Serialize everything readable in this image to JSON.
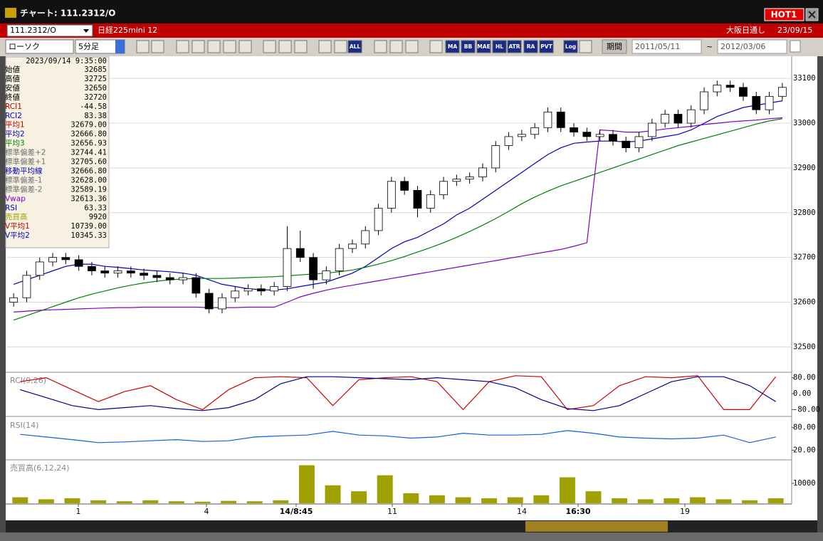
{
  "window": {
    "title": "チャート: 111.2312/O",
    "hot": "HOT1"
  },
  "header": {
    "symbol": "111.2312/O",
    "name": "日経225mini 12",
    "market": "大阪日通し",
    "date": "23/09/15"
  },
  "toolbar": {
    "chart_type": "ローソク",
    "interval": "5分足",
    "buttons": [
      "ALL",
      "MA",
      "BB",
      "MAE",
      "HL",
      "ATR",
      "RA",
      "PVT",
      "Log"
    ],
    "period": "期間",
    "from": "2011/05/11",
    "separator": "~",
    "to": "2012/03/06"
  },
  "info": {
    "datetime": "2023/09/14 9:35:00",
    "rows": [
      {
        "label": "始値",
        "value": "32685",
        "color": "#000000"
      },
      {
        "label": "高値",
        "value": "32725",
        "color": "#000000"
      },
      {
        "label": "安値",
        "value": "32650",
        "color": "#000000"
      },
      {
        "label": "終値",
        "value": "32720",
        "color": "#000000"
      },
      {
        "label": "RCI1",
        "value": "-44.58",
        "color": "#c00000"
      },
      {
        "label": "RCI2",
        "value": "83.38",
        "color": "#0000c0"
      },
      {
        "label": "平均1",
        "value": "32679.00",
        "color": "#c00000"
      },
      {
        "label": "平均2",
        "value": "32666.80",
        "color": "#0000c0"
      },
      {
        "label": "平均3",
        "value": "32656.93",
        "color": "#008000"
      },
      {
        "label": "標準偏差+2",
        "value": "32744.41",
        "color": "#707070"
      },
      {
        "label": "標準偏差+1",
        "value": "32705.60",
        "color": "#707070"
      },
      {
        "label": "移動平均線",
        "value": "32666.80",
        "color": "#0000c0"
      },
      {
        "label": "標準偏差-1",
        "value": "32628.00",
        "color": "#707070"
      },
      {
        "label": "標準偏差-2",
        "value": "32589.19",
        "color": "#707070"
      },
      {
        "label": "Vwap",
        "value": "32613.36",
        "color": "#8000c0"
      },
      {
        "label": "RSI",
        "value": "63.33",
        "color": "#0000c0"
      },
      {
        "label": "売買高",
        "value": "9920",
        "color": "#a0a000"
      },
      {
        "label": "V平均1",
        "value": "10739.00",
        "color": "#c00000"
      },
      {
        "label": "V平均2",
        "value": "10345.33",
        "color": "#0000c0"
      }
    ]
  },
  "x_labels": [
    "1",
    "4",
    "14/8:45",
    "11",
    "14",
    "16:30",
    "19"
  ],
  "chart_data": [
    {
      "type": "candlestick",
      "open": [
        32600,
        32610,
        32660,
        32690,
        32700,
        32695,
        32680,
        32670,
        32665,
        32670,
        32665,
        32660,
        32655,
        32650,
        32655,
        32620,
        32585,
        32610,
        32625,
        32630,
        32625,
        32635,
        32720,
        32700,
        32650,
        32670,
        32720,
        32730,
        32760,
        32810,
        32870,
        32850,
        32810,
        32840,
        32870,
        32875,
        32880,
        32900,
        32950,
        32970,
        32975,
        32990,
        33025,
        32990,
        32980,
        32970,
        32975,
        32960,
        32945,
        32970,
        33000,
        33020,
        33000,
        33030,
        33070,
        33085,
        33080,
        33060,
        33030,
        33060
      ],
      "high": [
        32620,
        32670,
        32700,
        32710,
        32710,
        32705,
        32690,
        32680,
        32680,
        32680,
        32675,
        32670,
        32665,
        32665,
        32665,
        32630,
        32620,
        32635,
        32640,
        32640,
        32645,
        32770,
        32760,
        32710,
        32680,
        32730,
        32740,
        32770,
        32820,
        32880,
        32880,
        32860,
        32850,
        32880,
        32885,
        32890,
        32910,
        32960,
        32980,
        32985,
        33000,
        33035,
        33035,
        33000,
        32990,
        32985,
        32985,
        32970,
        32980,
        33010,
        33030,
        33030,
        33040,
        33080,
        33095,
        33095,
        33090,
        33070,
        33070,
        33090
      ],
      "low": [
        32590,
        32600,
        32650,
        32680,
        32685,
        32670,
        32660,
        32655,
        32655,
        32655,
        32650,
        32645,
        32640,
        32640,
        32610,
        32575,
        32575,
        32600,
        32615,
        32615,
        32615,
        32625,
        32690,
        32630,
        32640,
        32660,
        32710,
        32720,
        32750,
        32800,
        32840,
        32790,
        32800,
        32830,
        32860,
        32865,
        32870,
        32890,
        32940,
        32960,
        32965,
        32980,
        32980,
        32970,
        32960,
        32960,
        32950,
        32935,
        32935,
        32960,
        32990,
        32990,
        32990,
        33020,
        33060,
        33070,
        33050,
        33020,
        33020,
        33050
      ],
      "close": [
        32610,
        32660,
        32690,
        32700,
        32695,
        32680,
        32670,
        32665,
        32670,
        32665,
        32660,
        32655,
        32650,
        32655,
        32620,
        32585,
        32610,
        32625,
        32630,
        32625,
        32635,
        32720,
        32700,
        32650,
        32670,
        32720,
        32730,
        32760,
        32810,
        32870,
        32850,
        32810,
        32840,
        32870,
        32875,
        32880,
        32900,
        32950,
        32970,
        32975,
        32990,
        33025,
        32990,
        32980,
        32970,
        32975,
        32960,
        32945,
        32970,
        33000,
        33020,
        33000,
        33030,
        33070,
        33085,
        33080,
        33060,
        33030,
        33060,
        33080
      ],
      "up_color": "#ffffff",
      "down_color": "#000000",
      "series": [
        {
          "color": "#0000c0",
          "values": [
            32640,
            32650,
            32660,
            32670,
            32680,
            32685,
            32685,
            32680,
            32678,
            32675,
            32672,
            32670,
            32668,
            32665,
            32660,
            32650,
            32640,
            32635,
            32630,
            32628,
            32627,
            32630,
            32635,
            32640,
            32645,
            32655,
            32665,
            32680,
            32700,
            32720,
            32735,
            32745,
            32760,
            32775,
            32795,
            32810,
            32830,
            32850,
            32870,
            32890,
            32910,
            32930,
            32945,
            32955,
            32958,
            32960,
            32960,
            32958,
            32960,
            32965,
            32970,
            32975,
            32985,
            33000,
            33015,
            33025,
            33035,
            33040,
            33045,
            33050
          ]
        },
        {
          "color": "#008000",
          "values": [
            32560,
            32570,
            32580,
            32590,
            32600,
            32610,
            32618,
            32625,
            32632,
            32638,
            32643,
            32647,
            32650,
            32652,
            32653,
            32653,
            32653,
            32654,
            32655,
            32656,
            32657,
            32659,
            32661,
            32663,
            32665,
            32668,
            32672,
            32678,
            32685,
            32693,
            32702,
            32712,
            32722,
            32733,
            32745,
            32758,
            32772,
            32787,
            32803,
            32820,
            32835,
            32848,
            32860,
            32870,
            32880,
            32890,
            32900,
            32910,
            32920,
            32930,
            32940,
            32950,
            32958,
            32966,
            32974,
            32982,
            32990,
            32998,
            33005,
            33010
          ]
        },
        {
          "color": "#8000c0",
          "values": [
            32578,
            32580,
            32582,
            32583,
            32584,
            32585,
            32586,
            32587,
            32588,
            32588,
            32589,
            32589,
            32589,
            32589,
            32589,
            32588,
            32588,
            32588,
            32589,
            32589,
            32589,
            32600,
            32612,
            32620,
            32627,
            32633,
            32638,
            32643,
            32648,
            32653,
            32658,
            32663,
            32668,
            32673,
            32678,
            32683,
            32688,
            32693,
            32698,
            32703,
            32708,
            32713,
            32718,
            32725,
            32733,
            32985,
            32983,
            32980,
            32980,
            32983,
            32987,
            32990,
            32993,
            32997,
            33000,
            33003,
            33005,
            33007,
            33010,
            33012
          ]
        }
      ],
      "ylim": [
        32445,
        33148
      ],
      "yticks": [
        32500,
        32600,
        32700,
        32800,
        32900,
        33000,
        33100
      ],
      "grid": true
    },
    {
      "type": "line",
      "label": "RCI(9,26)",
      "series": [
        {
          "color": "#d00000",
          "values": [
            60,
            80,
            20,
            -40,
            10,
            40,
            -30,
            -80,
            20,
            80,
            85,
            80,
            -60,
            70,
            80,
            85,
            60,
            -80,
            60,
            90,
            85,
            -80,
            -60,
            40,
            85,
            80,
            90,
            -80,
            -80,
            85
          ]
        },
        {
          "color": "#000090",
          "values": [
            20,
            -20,
            -60,
            -80,
            -70,
            -60,
            -75,
            -85,
            -70,
            -30,
            50,
            85,
            85,
            80,
            75,
            70,
            80,
            70,
            60,
            30,
            -30,
            -75,
            -85,
            -60,
            0,
            60,
            85,
            85,
            40,
            -40
          ]
        }
      ],
      "ylim": [
        -100,
        100
      ],
      "yticks": [
        {
          "value": 80,
          "label": "80.00"
        },
        {
          "value": 0,
          "label": "0.00"
        },
        {
          "value": -80,
          "label": "-80.00"
        }
      ],
      "grid": false
    },
    {
      "type": "line",
      "label": "RSI(14)",
      "series": [
        {
          "color": "#1060e0",
          "values": [
            62,
            55,
            48,
            40,
            42,
            45,
            48,
            43,
            45,
            55,
            58,
            60,
            70,
            60,
            58,
            52,
            55,
            65,
            60,
            60,
            62,
            72,
            65,
            55,
            52,
            50,
            52,
            60,
            40,
            55
          ]
        }
      ],
      "ylim": [
        -2,
        104
      ],
      "yticks": [
        {
          "value": 80,
          "label": "80.00"
        },
        {
          "value": 20,
          "label": "20.00"
        }
      ],
      "grid": false
    },
    {
      "type": "bar",
      "label": "売買高(6,12,24)",
      "color": "#a0a000",
      "values": [
        3000,
        2000,
        2500,
        1500,
        1000,
        1500,
        1000,
        800,
        1200,
        1000,
        1500,
        19000,
        9000,
        6000,
        14000,
        5000,
        4000,
        3000,
        2500,
        3000,
        4000,
        13000,
        6000,
        2500,
        2000,
        2500,
        3000,
        2000,
        1500,
        2500
      ],
      "ylim": [
        0,
        21000
      ],
      "yticks": [
        10000
      ],
      "grid": false
    }
  ]
}
